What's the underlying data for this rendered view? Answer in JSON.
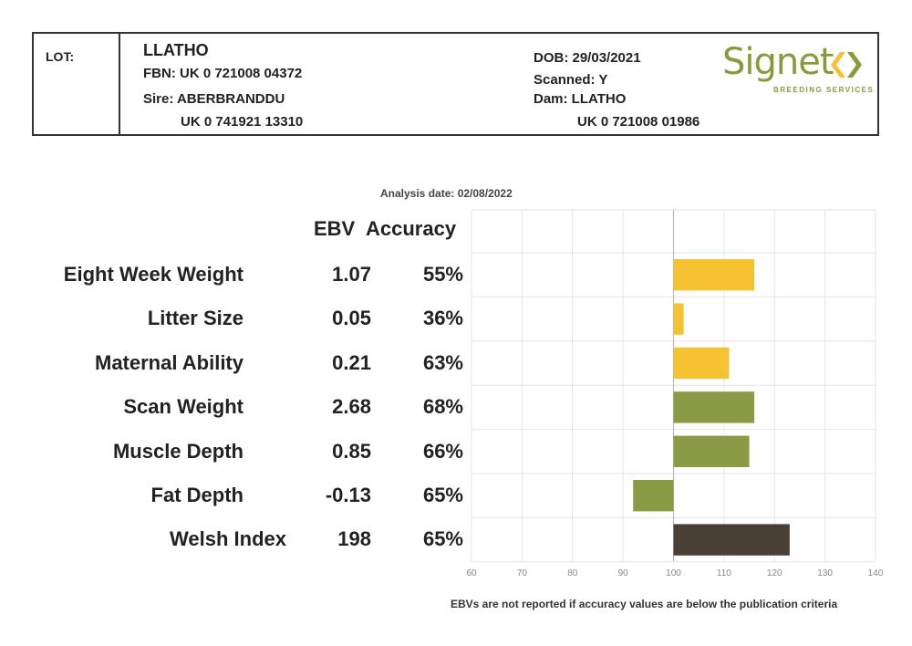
{
  "header": {
    "lot_label": "LOT:",
    "name": "LLATHO",
    "fbn": "FBN: UK 0 721008 04372",
    "sire_label": "Sire: ABERBRANDDU",
    "sire_id": "UK 0 741921 13310",
    "dob": "DOB: 29/03/2021",
    "scanned": "Scanned: Y",
    "dam_label": "Dam: LLATHO",
    "dam_id": "UK 0 721008 01986",
    "logo_text": "Signet",
    "logo_sub": "BREEDING SERVICES"
  },
  "analysis_date": "Analysis date: 02/08/2022",
  "columns": {
    "ebv": "EBV",
    "accuracy": "Accuracy"
  },
  "footnote": "EBVs are not reported if accuracy values are below the publication criteria",
  "colors": {
    "yellow": "#f5c332",
    "green": "#8a9a45",
    "brown": "#4a3f35",
    "grid": "#e6e6e6",
    "axis": "#bbbbbb"
  },
  "chart_data": {
    "type": "bar",
    "orientation": "horizontal",
    "baseline": 100,
    "xlim": [
      60,
      140
    ],
    "xticks": [
      "60",
      "70",
      "80",
      "90",
      "100",
      "110",
      "120",
      "130",
      "140"
    ],
    "grid": true,
    "rows": [
      {
        "label": "Eight Week Weight",
        "ebv": "1.07",
        "accuracy": "55%",
        "value": 116,
        "color": "yellow"
      },
      {
        "label": "Litter Size",
        "ebv": "0.05",
        "accuracy": "36%",
        "value": 102,
        "color": "yellow"
      },
      {
        "label": "Maternal Ability",
        "ebv": "0.21",
        "accuracy": "63%",
        "value": 111,
        "color": "yellow"
      },
      {
        "label": "Scan Weight",
        "ebv": "2.68",
        "accuracy": "68%",
        "value": 116,
        "color": "green"
      },
      {
        "label": "Muscle Depth",
        "ebv": "0.85",
        "accuracy": "66%",
        "value": 115,
        "color": "green"
      },
      {
        "label": "Fat Depth",
        "ebv": "-0.13",
        "accuracy": "65%",
        "value": 92,
        "color": "green"
      },
      {
        "label": "Welsh Index",
        "ebv": "198",
        "accuracy": "65%",
        "value": 123,
        "color": "brown"
      }
    ]
  }
}
